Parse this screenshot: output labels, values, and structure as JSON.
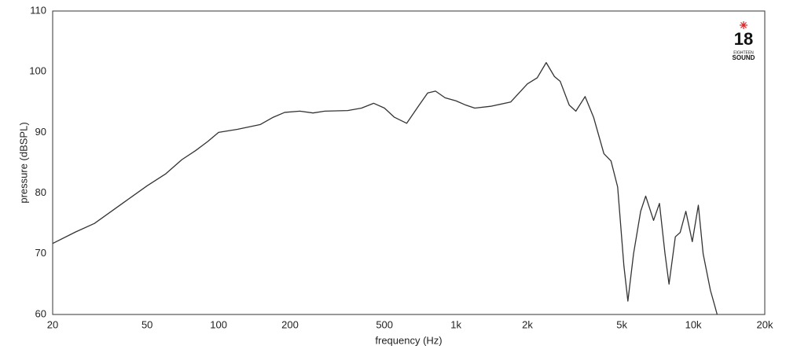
{
  "chart_data": {
    "type": "line",
    "x_label": "frequency (Hz)",
    "y_label": "pressure (dBSPL)",
    "log_x": true,
    "grid": true,
    "xlim": [
      20,
      20000
    ],
    "ylim": [
      60,
      110
    ],
    "xticks": [
      20,
      50,
      100,
      200,
      500,
      {
        "value": 1000,
        "label": "1k"
      },
      {
        "value": 2000,
        "label": "2k"
      },
      {
        "value": 5000,
        "label": "5k"
      },
      {
        "value": 10000,
        "label": "10k"
      },
      {
        "value": 20000,
        "label": "20k"
      }
    ],
    "x_minor_grid": [
      30,
      40,
      60,
      70,
      80,
      90,
      300,
      400,
      600,
      700,
      800,
      900,
      3000,
      4000,
      6000,
      7000,
      8000,
      9000
    ],
    "yticks": [
      60,
      70,
      80,
      90,
      100,
      110
    ],
    "series": [
      {
        "color": "#333333",
        "x": [
          20,
          25,
          30,
          40,
          50,
          60,
          70,
          80,
          90,
          100,
          120,
          150,
          170,
          190,
          220,
          250,
          280,
          350,
          400,
          450,
          500,
          550,
          620,
          700,
          760,
          820,
          900,
          1000,
          1100,
          1200,
          1400,
          1700,
          2000,
          2200,
          2400,
          2600,
          2750,
          3000,
          3200,
          3500,
          3800,
          4200,
          4500,
          4800,
          5100,
          5300,
          5600,
          6000,
          6300,
          6800,
          7200,
          7600,
          7900,
          8400,
          8800,
          9300,
          9900,
          10500,
          11000,
          11800,
          12300,
          12600
        ],
        "values": [
          71.7,
          73.6,
          75,
          78.5,
          81.2,
          83.2,
          85.5,
          87,
          88.5,
          90,
          90.5,
          91.3,
          92.5,
          93.3,
          93.5,
          93.2,
          93.5,
          93.6,
          94,
          94.8,
          94,
          92.5,
          91.5,
          94.5,
          96.5,
          96.8,
          95.7,
          95.2,
          94.5,
          94,
          94.3,
          95,
          98,
          99,
          101.5,
          99.2,
          98.4,
          94.5,
          93.5,
          95.9,
          92.5,
          86.5,
          85.3,
          81,
          68,
          62.2,
          70,
          77,
          79.5,
          75.5,
          78.3,
          70,
          65,
          72.8,
          73.5,
          77,
          72,
          78,
          70,
          64,
          61.5,
          60
        ]
      }
    ],
    "logo": {
      "number": "18",
      "line1": "EIGHTEEN",
      "line2": "SOUND"
    }
  }
}
